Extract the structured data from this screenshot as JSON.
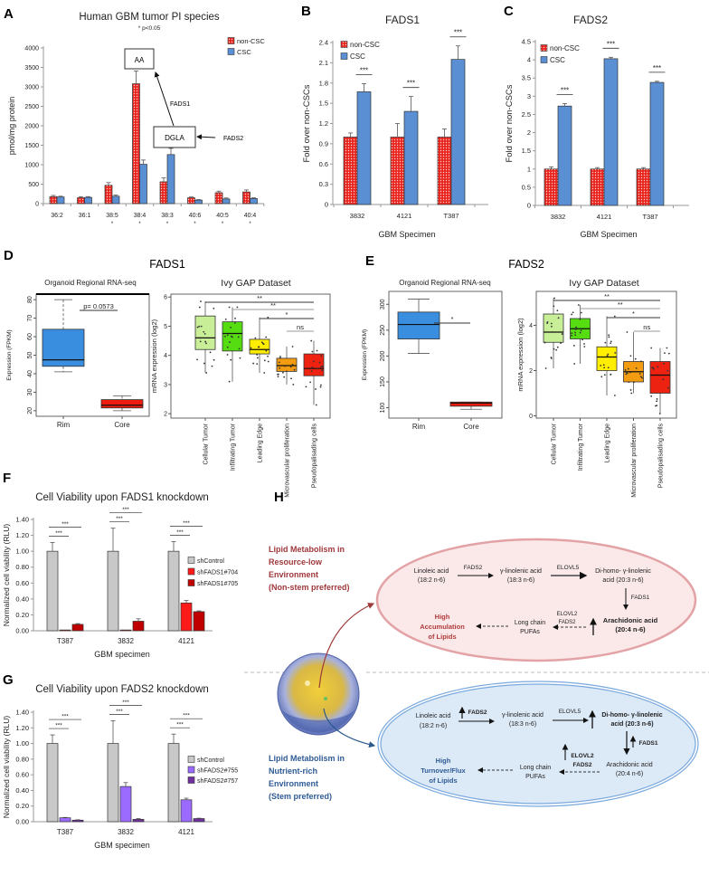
{
  "figure": {
    "panel_labels": [
      "A",
      "B",
      "C",
      "D",
      "E",
      "F",
      "G",
      "H"
    ],
    "d_title": "FADS1",
    "e_title": "FADS2"
  },
  "chart_data": [
    {
      "panel": "A",
      "type": "bar",
      "title": "Human GBM tumor PI species",
      "subtitle": "* p<0.05",
      "ylabel": "pmol/mg protein",
      "xlabel": "",
      "ylim": [
        0,
        4000
      ],
      "yticks": [
        "0",
        "500",
        "1000",
        "1500",
        "2000",
        "2500",
        "3000",
        "3500",
        "4000"
      ],
      "categories": [
        "36:2",
        "36:1",
        "38:5",
        "38:4",
        "38:3",
        "40:6",
        "40:5",
        "40:4"
      ],
      "category_marks": [
        "",
        "",
        "*",
        "*",
        "*",
        "*",
        "*",
        "*"
      ],
      "series": [
        {
          "name": "non-CSC",
          "color": "#e8251e",
          "values": [
            180,
            150,
            470,
            3080,
            560,
            150,
            280,
            300
          ],
          "errors": [
            30,
            25,
            70,
            330,
            100,
            20,
            40,
            50
          ]
        },
        {
          "name": "CSC",
          "color": "#5b8fd4",
          "values": [
            170,
            160,
            190,
            1010,
            1260,
            90,
            120,
            130
          ],
          "errors": [
            20,
            20,
            30,
            110,
            160,
            15,
            25,
            20
          ]
        }
      ],
      "legend": "top-right",
      "annotations": {
        "aa_box": "AA",
        "dgla_box": "DGLA",
        "fads1_arrow": "FADS1",
        "fads2_arrow": "FADS2"
      }
    },
    {
      "panel": "B",
      "type": "bar",
      "title": "FADS1",
      "ylabel": "Fold  over non-CSCs",
      "xlabel": "GBM Specimen",
      "ylim": [
        0,
        2.4
      ],
      "yticks": [
        "0",
        "0.3",
        "0.6",
        "0.9",
        "1.2",
        "1.5",
        "1.8",
        "2.1",
        "2.4"
      ],
      "categories": [
        "3832",
        "4121",
        "T387"
      ],
      "series": [
        {
          "name": "non-CSC",
          "color": "#e8251e",
          "values": [
            1.0,
            1.0,
            1.0
          ],
          "errors": [
            0.06,
            0.2,
            0.12
          ]
        },
        {
          "name": "CSC",
          "color": "#5b8fd4",
          "values": [
            1.67,
            1.38,
            2.15
          ],
          "errors": [
            0.12,
            0.22,
            0.2
          ]
        }
      ],
      "significance": [
        "***",
        "***",
        "***"
      ],
      "legend": "top-left"
    },
    {
      "panel": "C",
      "type": "bar",
      "title": "FADS2",
      "ylabel": "Fold over non-CSCs",
      "xlabel": "GBM Specimen",
      "ylim": [
        0,
        4.5
      ],
      "yticks": [
        "0",
        "0.5",
        "1",
        "1.5",
        "2",
        "2.5",
        "3",
        "3.5",
        "4",
        "4.5"
      ],
      "categories": [
        "3832",
        "4121",
        "T387"
      ],
      "series": [
        {
          "name": "non-CSC",
          "color": "#e8251e",
          "values": [
            1.0,
            1.0,
            1.0
          ],
          "errors": [
            0.06,
            0.04,
            0.04
          ]
        },
        {
          "name": "CSC",
          "color": "#5b8fd4",
          "values": [
            2.73,
            4.03,
            3.38
          ],
          "errors": [
            0.07,
            0.04,
            0.03
          ]
        }
      ],
      "significance": [
        "***",
        "***",
        "***"
      ],
      "legend": "top-left"
    },
    {
      "panel": "D",
      "type": "box",
      "title": "Organoid Regional RNA-seq",
      "ylabel": "Expression (FPKM)",
      "ylim": [
        17,
        83
      ],
      "yticks": [
        "20",
        "30",
        "40",
        "50",
        "60",
        "70",
        "80"
      ],
      "categories": [
        "Rim",
        "Core"
      ],
      "colors": [
        "#3a8ee0",
        "#ee1c0e"
      ],
      "boxes": [
        {
          "low": 41,
          "q1": 44,
          "median": 47.5,
          "q3": 64,
          "high": 80
        },
        {
          "low": 20,
          "q1": 21.5,
          "median": 23,
          "q3": 26,
          "high": 28
        }
      ],
      "comparisons": [
        {
          "from": 0,
          "to": 1,
          "label": "p= 0.0573"
        }
      ]
    },
    {
      "panel": "D",
      "type": "box",
      "title": "Ivy GAP Dataset",
      "ylabel": "mRNA expression (log2)",
      "ylim": [
        1.85,
        6.1
      ],
      "yticks": [
        "2",
        "3",
        "4",
        "5",
        "6"
      ],
      "categories": [
        "Cellular Tumor",
        "Infiltrating Tumor",
        "Leading Edge",
        "Microvascular proliferation",
        "Pseudopalisading cells"
      ],
      "colors": [
        "#c8ee98",
        "#55dd11",
        "#ffee00",
        "#f39c12",
        "#ee2211"
      ],
      "boxes": [
        {
          "low": 3.4,
          "q1": 4.2,
          "median": 4.6,
          "q3": 5.35,
          "high": 5.85
        },
        {
          "low": 3.1,
          "q1": 4.15,
          "median": 4.75,
          "q3": 5.15,
          "high": 5.65
        },
        {
          "low": 3.4,
          "q1": 4.05,
          "median": 4.2,
          "q3": 4.55,
          "high": 5.3
        },
        {
          "low": 3.0,
          "q1": 3.45,
          "median": 3.65,
          "q3": 3.9,
          "high": 4.3
        },
        {
          "low": 2.3,
          "q1": 3.3,
          "median": 3.55,
          "q3": 4.05,
          "high": 4.5
        }
      ],
      "comparisons": [
        {
          "from": 0,
          "to": 4,
          "label": "**"
        },
        {
          "from": 1,
          "to": 4,
          "label": "**"
        },
        {
          "from": 2,
          "to": 4,
          "label": "*"
        },
        {
          "from": 3,
          "to": 4,
          "label": "ns"
        }
      ]
    },
    {
      "panel": "E",
      "type": "box",
      "title": "Organoid Regional RNA-seq",
      "ylabel": "Expression (FPKM)",
      "ylim": [
        80,
        325
      ],
      "yticks": [
        "100",
        "150",
        "200",
        "250",
        "300"
      ],
      "categories": [
        "Rim",
        "Core"
      ],
      "colors": [
        "#3a8ee0",
        "#ee1c0e"
      ],
      "boxes": [
        {
          "low": 205,
          "q1": 233,
          "median": 261,
          "q3": 285,
          "high": 310
        },
        {
          "low": 97,
          "q1": 103,
          "median": 109,
          "q3": 111,
          "high": 111
        }
      ],
      "comparisons": [
        {
          "from": 0,
          "to": 1,
          "label": "*"
        }
      ]
    },
    {
      "panel": "E",
      "type": "box",
      "title": "Ivy GAP Dataset",
      "ylabel": "mRNA expression (log2)",
      "ylim": [
        -0.1,
        5.5
      ],
      "yticks": [
        "0",
        "2",
        "4"
      ],
      "categories": [
        "Cellular Tumor",
        "Infiltrating Tumor",
        "Leading Edge",
        "Microvascular proliferation",
        "Pseudopalisading cells"
      ],
      "colors": [
        "#c8ee98",
        "#55dd11",
        "#ffee00",
        "#f39c12",
        "#ee2211"
      ],
      "boxes": [
        {
          "low": 2.1,
          "q1": 3.25,
          "median": 3.7,
          "q3": 4.5,
          "high": 5.2
        },
        {
          "low": 2.3,
          "q1": 3.4,
          "median": 3.85,
          "q3": 4.3,
          "high": 4.9
        },
        {
          "low": 0.9,
          "q1": 2.0,
          "median": 2.6,
          "q3": 3.05,
          "high": 4.4
        },
        {
          "low": 1.0,
          "q1": 1.5,
          "median": 1.95,
          "q3": 2.4,
          "high": 3.7
        },
        {
          "low": 0.1,
          "q1": 1.0,
          "median": 1.8,
          "q3": 2.4,
          "high": 3.0
        }
      ],
      "comparisons": [
        {
          "from": 0,
          "to": 4,
          "label": "**"
        },
        {
          "from": 1,
          "to": 4,
          "label": "**"
        },
        {
          "from": 2,
          "to": 4,
          "label": "*"
        },
        {
          "from": 3,
          "to": 4,
          "label": "ns"
        }
      ]
    },
    {
      "panel": "F",
      "type": "bar",
      "title": "Cell Viability upon FADS1 knockdown",
      "ylabel": "Normalized cell viability (RLU)",
      "xlabel": "GBM specimen",
      "ylim": [
        0,
        1.4
      ],
      "yticks": [
        "0.00",
        "0.20",
        "0.40",
        "0.60",
        "0.80",
        "1.00",
        "1.20",
        "1.40"
      ],
      "categories": [
        "T387",
        "3832",
        "4121"
      ],
      "series": [
        {
          "name": "shControl",
          "color": "#c8c8c8",
          "values": [
            1.0,
            1.0,
            1.0
          ],
          "errors": [
            0.11,
            0.29,
            0.12
          ]
        },
        {
          "name": "shFADS1#704",
          "color": "#ff1a1a",
          "values": [
            0.01,
            0.01,
            0.35
          ],
          "errors": [
            0,
            0,
            0.03
          ]
        },
        {
          "name": "shFADS1#705",
          "color": "#c00000",
          "values": [
            0.08,
            0.12,
            0.24
          ],
          "errors": [
            0.01,
            0.03,
            0.01
          ]
        }
      ],
      "significance": [
        [
          "***",
          "***"
        ],
        [
          "***",
          "***"
        ],
        [
          "***",
          "***"
        ]
      ],
      "legend": "right"
    },
    {
      "panel": "G",
      "type": "bar",
      "title": "Cell Viability upon FADS2 knockdown",
      "ylabel": "Normalized cell viability (RLU)",
      "xlabel": "GBM specimen",
      "ylim": [
        0,
        1.4
      ],
      "yticks": [
        "0.00",
        "0.20",
        "0.40",
        "0.60",
        "0.80",
        "1.00",
        "1.20",
        "1.40"
      ],
      "categories": [
        "T387",
        "3832",
        "4121"
      ],
      "series": [
        {
          "name": "shControl",
          "color": "#c8c8c8",
          "values": [
            1.0,
            1.0,
            1.0
          ],
          "errors": [
            0.11,
            0.29,
            0.12
          ]
        },
        {
          "name": "shFADS2#755",
          "color": "#9b6bff",
          "values": [
            0.05,
            0.45,
            0.28
          ],
          "errors": [
            0.005,
            0.05,
            0.02
          ]
        },
        {
          "name": "shFADS2#757",
          "color": "#7030a0",
          "values": [
            0.02,
            0.03,
            0.04
          ],
          "errors": [
            0.005,
            0.01,
            0.005
          ]
        }
      ],
      "significance": [
        [
          "***",
          "***"
        ],
        [
          "***",
          "***"
        ],
        [
          "***",
          "***"
        ]
      ],
      "legend": "right"
    }
  ],
  "diagram": {
    "low": {
      "heading": [
        "Lipid Metabolism in",
        "Resource-low",
        "Environment",
        "(Non-stem preferred)"
      ],
      "linoleic": [
        "Linoleic acid",
        "(18:2 n-6)"
      ],
      "fads2": "FADS2",
      "gla": [
        "γ-linolenic acid",
        "(18:3 n-6)"
      ],
      "elovl5": "ELOVL5",
      "dgla": [
        "Di-homo- γ-linolenic",
        "acid (20:3 n-6)"
      ],
      "fads1": "FADS1",
      "aa": [
        "Arachidonic acid",
        "(20:4 n-6)"
      ],
      "elovl2_fads2": [
        "ELOVL2",
        "FADS2"
      ],
      "pufa": [
        "Long chain",
        "PUFAs"
      ],
      "outcome": [
        "High",
        "Accumulation",
        "of Lipids"
      ]
    },
    "rich": {
      "heading": [
        "Lipid Metabolism in",
        "Nutrient-rich",
        "Environment",
        "(Stem preferred)"
      ],
      "linoleic": [
        "Linoleic acid",
        "(18:2 n-6)"
      ],
      "fads2": "FADS2",
      "gla": [
        "γ-linolenic acid",
        "(18:3 n-6)"
      ],
      "elovl5": "ELOVL5",
      "dgla": [
        "Di-homo- γ-linolenic",
        "acid (20:3 n-6)"
      ],
      "fads1": "FADS1",
      "aa": [
        "Arachidonic acid",
        "(20:4 n-6)"
      ],
      "elovl2_fads2": [
        "ELOVL2",
        "FADS2"
      ],
      "pufa": [
        "Long chain",
        "PUFAs"
      ],
      "outcome": [
        "High",
        "Turnover/Flux",
        "of Lipids"
      ]
    },
    "colors": {
      "low": "#a0383c",
      "rich": "#2f5b95"
    }
  }
}
